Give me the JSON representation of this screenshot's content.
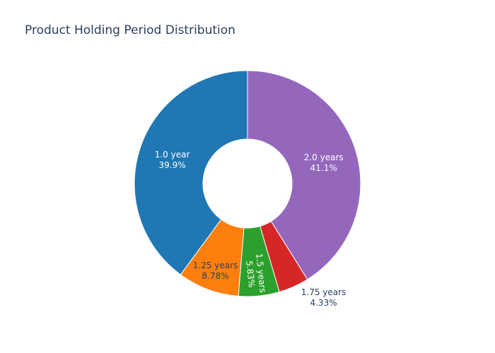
{
  "chart_data": {
    "type": "pie",
    "hole": true,
    "title": "Product Holding Period Distribution",
    "slices": [
      {
        "label": "2.0 years",
        "value": 41.1,
        "percent_text": "41.1%",
        "color": "#9467bd",
        "text_color": "#ffffff"
      },
      {
        "label": "1.75 years",
        "value": 4.33,
        "percent_text": "4.33%",
        "color": "#d62728",
        "text_color": "#2a3f5f"
      },
      {
        "label": "1.5 years",
        "value": 5.83,
        "percent_text": "5.83%",
        "color": "#2ca02c",
        "text_color": "#ffffff"
      },
      {
        "label": "1.25 years",
        "value": 8.78,
        "percent_text": "8.78%",
        "color": "#ff7f0e",
        "text_color": "#2a3f5f"
      },
      {
        "label": "1.0 year",
        "value": 39.9,
        "percent_text": "39.9%",
        "color": "#1f77b4",
        "text_color": "#ffffff"
      }
    ]
  }
}
